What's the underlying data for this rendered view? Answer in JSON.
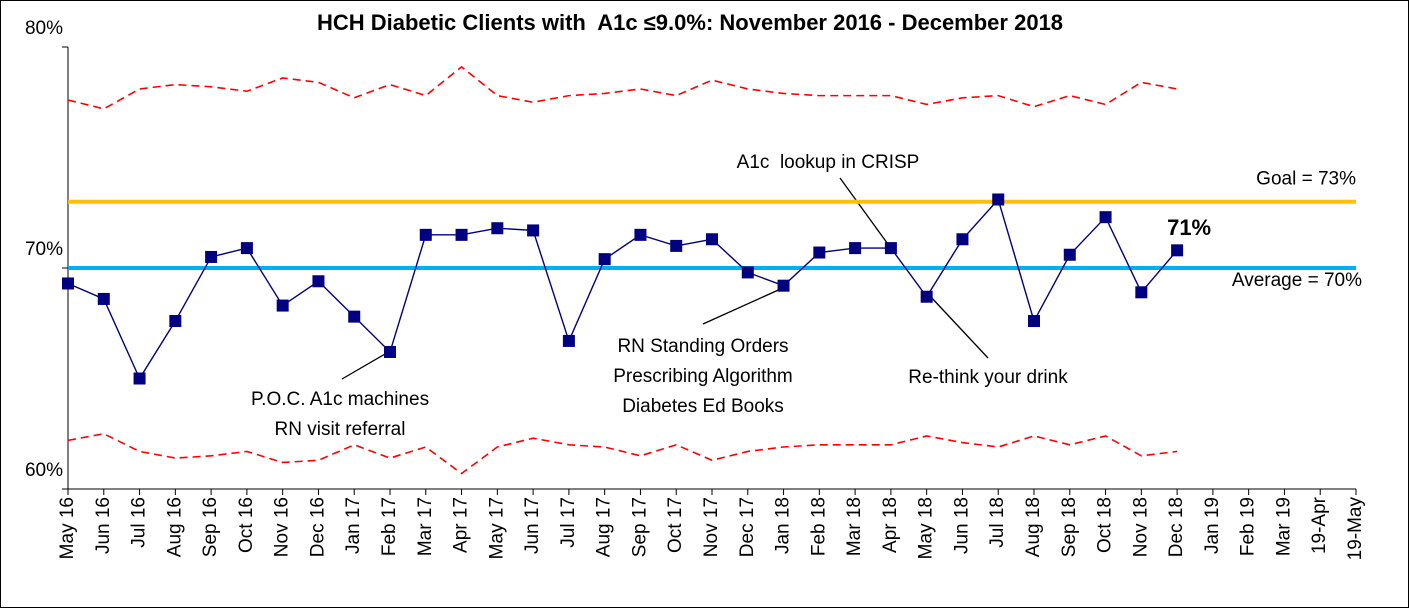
{
  "chart_data": {
    "type": "line",
    "title": "HCH Diabetic Clients with  A1c ≤9.0%: November 2016 - December 2018",
    "categories": [
      "May 16",
      "Jun 16",
      "Jul 16",
      "Aug 16",
      "Sep 16",
      "Oct 16",
      "Nov 16",
      "Dec 16",
      "Jan 17",
      "Feb 17",
      "Mar 17",
      "Apr 17",
      "May 17",
      "Jun 17",
      "Jul 17",
      "Aug 17",
      "Sep 17",
      "Oct 17",
      "Nov 17",
      "Dec 17",
      "Jan 18",
      "Feb 18",
      "Mar 18",
      "Apr 18",
      "May 18",
      "Jun 18",
      "Jul 18",
      "Aug 18",
      "Sep 18",
      "Oct 18",
      "Nov 18",
      "Dec 18",
      "Jan 19",
      "Feb 19",
      "Mar 19",
      "19-Apr",
      "19-May"
    ],
    "series": [
      {
        "color": "#000080",
        "style": "markers",
        "values": [
          69.3,
          68.6,
          65.0,
          67.6,
          70.5,
          70.9,
          68.3,
          69.4,
          67.8,
          66.2,
          71.5,
          71.5,
          71.8,
          71.7,
          66.7,
          70.4,
          71.5,
          71.0,
          71.3,
          69.8,
          69.2,
          70.7,
          70.9,
          70.9,
          68.7,
          71.3,
          73.1,
          67.6,
          70.6,
          72.3,
          68.9,
          70.8,
          null,
          null,
          null,
          null,
          null
        ],
        "value_labels": [
          null,
          null,
          null,
          null,
          null,
          null,
          null,
          null,
          null,
          null,
          null,
          null,
          null,
          null,
          null,
          null,
          null,
          null,
          null,
          null,
          null,
          null,
          null,
          null,
          null,
          null,
          null,
          null,
          null,
          null,
          null,
          "71%",
          null,
          null,
          null,
          null,
          null
        ]
      },
      {
        "color": "#ff0000",
        "style": "dashed",
        "values": [
          77.6,
          77.2,
          78.1,
          78.3,
          78.2,
          78.0,
          78.6,
          78.4,
          77.7,
          78.3,
          77.8,
          79.1,
          77.8,
          77.5,
          77.8,
          77.9,
          78.1,
          77.8,
          78.5,
          78.1,
          77.9,
          77.8,
          77.8,
          77.8,
          77.4,
          77.7,
          77.8,
          77.3,
          77.8,
          77.4,
          78.4,
          78.1,
          null,
          null,
          null,
          null,
          null
        ]
      },
      {
        "color": "#ff0000",
        "style": "dashed",
        "values": [
          62.2,
          62.5,
          61.7,
          61.4,
          61.5,
          61.7,
          61.2,
          61.3,
          62.0,
          61.4,
          61.9,
          60.7,
          61.9,
          62.3,
          62.0,
          61.9,
          61.5,
          62.0,
          61.3,
          61.7,
          61.9,
          62.0,
          62.0,
          62.0,
          62.4,
          62.1,
          61.9,
          62.4,
          62.0,
          62.4,
          61.5,
          61.7,
          null,
          null,
          null,
          null,
          null
        ]
      }
    ],
    "reference_lines": [
      {
        "value": 73,
        "label": "Goal = 73%",
        "color": "#ffc000"
      },
      {
        "value": 70,
        "label": "Average = 70%",
        "color": "#00b0f0"
      }
    ],
    "annotations": [
      {
        "lines": [
          "P.O.C. A1c machines",
          "RN visit referral"
        ]
      },
      {
        "lines": [
          "RN Standing Orders",
          "Prescribing Algorithm",
          "Diabetes Ed Books"
        ]
      },
      {
        "lines": [
          "A1c  lookup in CRISP"
        ]
      },
      {
        "lines": [
          "Re-think your drink"
        ]
      }
    ],
    "ylim": [
      60,
      80
    ],
    "yticks": [
      {
        "value": 60,
        "label": "60%"
      },
      {
        "value": 70,
        "label": "70%"
      },
      {
        "value": 80,
        "label": "80%"
      }
    ]
  }
}
